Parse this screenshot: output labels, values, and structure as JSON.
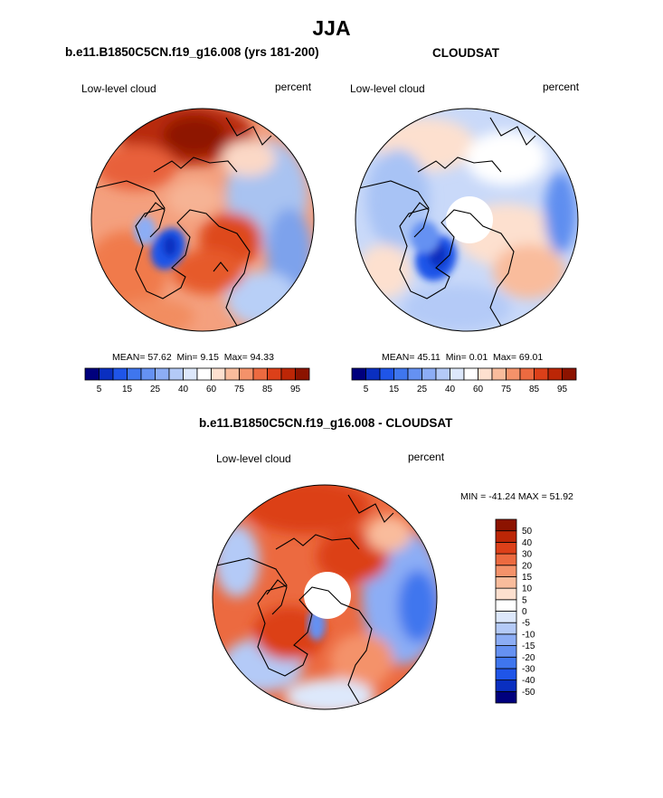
{
  "figure": {
    "title": "JJA",
    "units": "percent",
    "variable": "Low-level cloud"
  },
  "panels": [
    {
      "title": "b.e11.B1850C5CN.f19_g16.008 (yrs 181-200)",
      "left_label": "Low-level cloud",
      "right_label": "percent",
      "stats": {
        "mean_label": "MEAN=",
        "mean": "57.62",
        "min_label": "Min=",
        "min": "9.15",
        "max_label": "Max=",
        "max": "94.33"
      }
    },
    {
      "title": "CLOUDSAT",
      "left_label": "Low-level cloud",
      "right_label": "percent",
      "stats": {
        "mean_label": "MEAN=",
        "mean": "45.11",
        "min_label": "Min=",
        "min": "0.01",
        "max_label": "Max=",
        "max": "69.01"
      }
    },
    {
      "title": "b.e11.B1850C5CN.f19_g16.008 - CLOUDSAT",
      "left_label": "Low-level cloud",
      "right_label": "percent",
      "minmax_text": "MIN = -41.24 MAX =  51.92"
    }
  ],
  "chart_data": [
    {
      "type": "heatmap",
      "projection": "north polar stereographic",
      "title": "b.e11.B1850C5CN.f19_g16.008 (yrs 181-200)",
      "variable": "Low-level cloud",
      "units": "percent",
      "mean": 57.62,
      "min": 9.15,
      "max": 94.33,
      "colorbar_levels": [
        5,
        10,
        15,
        20,
        25,
        30,
        40,
        50,
        60,
        65,
        75,
        80,
        85,
        90,
        95
      ],
      "colorbar_tick_labels": [
        "5",
        "15",
        "25",
        "40",
        "60",
        "75",
        "85",
        "95"
      ],
      "colorbar_colors": [
        "#00007d",
        "#0a2fc0",
        "#1f55e8",
        "#3f76ee",
        "#6591f2",
        "#8cadf5",
        "#b4caf7",
        "#dde8fb",
        "#ffffff",
        "#fde0cf",
        "#f9bc9c",
        "#f4926a",
        "#ec6a40",
        "#dc4019",
        "#bc2606",
        "#8c1300"
      ]
    },
    {
      "type": "heatmap",
      "projection": "north polar stereographic",
      "title": "CLOUDSAT",
      "variable": "Low-level cloud",
      "units": "percent",
      "mean": 45.11,
      "min": 0.01,
      "max": 69.01,
      "colorbar_levels": [
        5,
        10,
        15,
        20,
        25,
        30,
        40,
        50,
        60,
        65,
        75,
        80,
        85,
        90,
        95
      ],
      "colorbar_tick_labels": [
        "5",
        "15",
        "25",
        "40",
        "60",
        "75",
        "85",
        "95"
      ],
      "colorbar_colors": [
        "#00007d",
        "#0a2fc0",
        "#1f55e8",
        "#3f76ee",
        "#6591f2",
        "#8cadf5",
        "#b4caf7",
        "#dde8fb",
        "#ffffff",
        "#fde0cf",
        "#f9bc9c",
        "#f4926a",
        "#ec6a40",
        "#dc4019",
        "#bc2606",
        "#8c1300"
      ]
    },
    {
      "type": "heatmap",
      "projection": "north polar stereographic",
      "title": "b.e11.B1850C5CN.f19_g16.008 - CLOUDSAT",
      "variable": "Low-level cloud",
      "units": "percent",
      "min": -41.24,
      "max": 51.92,
      "colorbar_orientation": "vertical",
      "colorbar_levels": [
        -50,
        -40,
        -30,
        -20,
        -15,
        -10,
        -5,
        0,
        5,
        10,
        15,
        20,
        30,
        40,
        50
      ],
      "colorbar_tick_labels": [
        "-50",
        "-40",
        "-30",
        "-20",
        "-15",
        "-10",
        "-5",
        "0",
        "5",
        "10",
        "15",
        "20",
        "30",
        "40",
        "50"
      ],
      "colorbar_colors": [
        "#00007d",
        "#0a2fc0",
        "#1f55e8",
        "#3f76ee",
        "#6591f2",
        "#8cadf5",
        "#b4caf7",
        "#dde8fb",
        "#ffffff",
        "#fde0cf",
        "#f9bc9c",
        "#f4926a",
        "#ec6a40",
        "#dc4019",
        "#bc2606",
        "#8c1300"
      ]
    }
  ]
}
